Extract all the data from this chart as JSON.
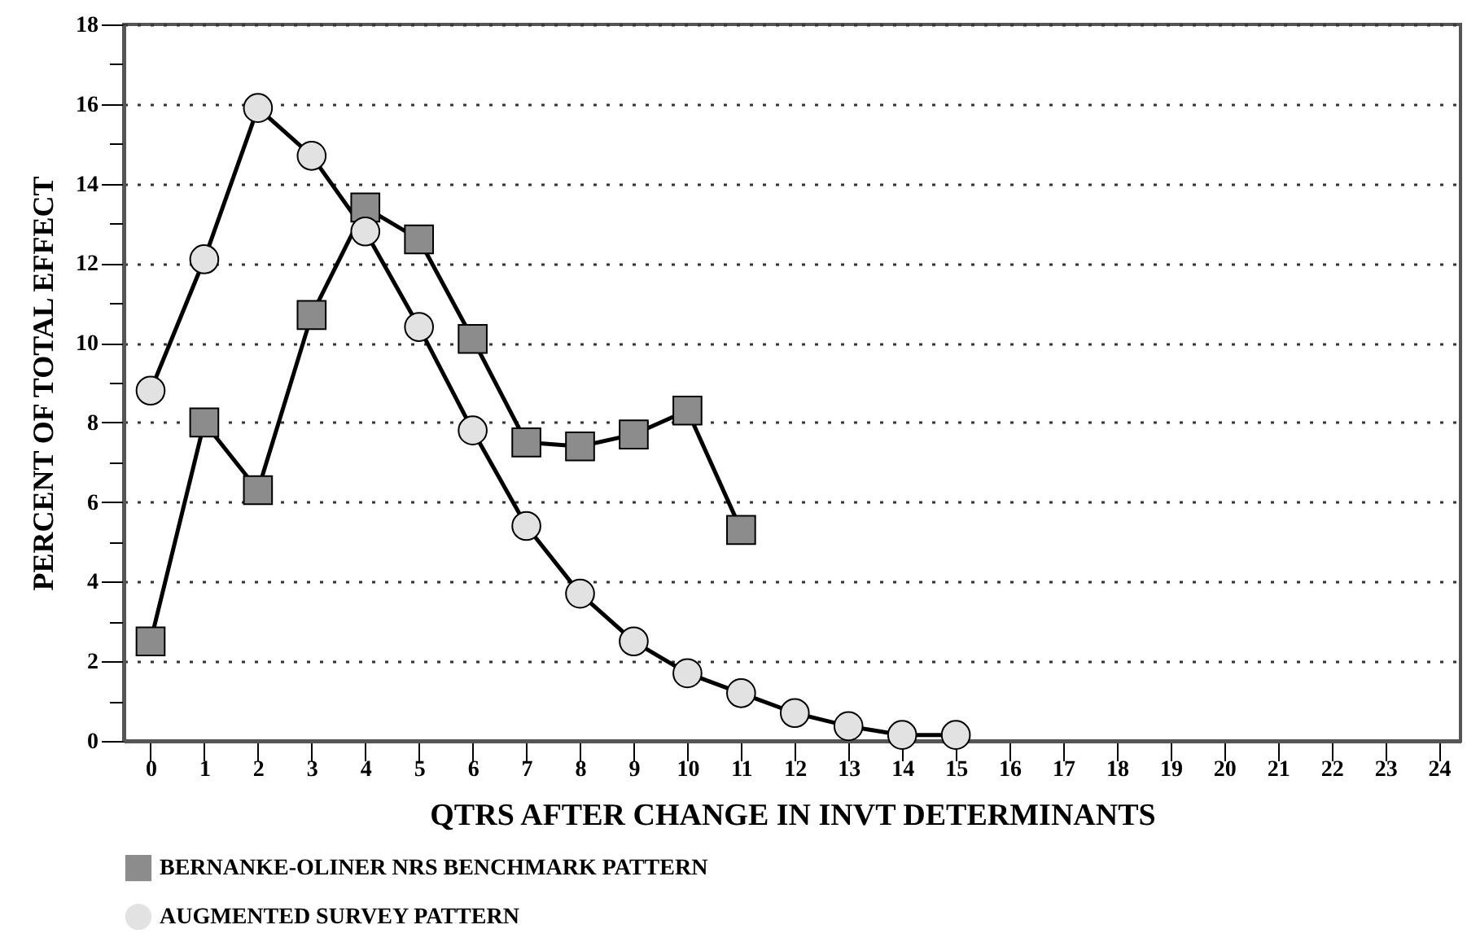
{
  "chart_data": {
    "type": "line",
    "xlabel": "QTRS AFTER CHANGE IN INVT DETERMINANTS",
    "ylabel": "PERCENT OF TOTAL EFFECT",
    "xlim": [
      -0.5,
      24.4
    ],
    "xticks": [
      0,
      1,
      2,
      3,
      4,
      5,
      6,
      7,
      8,
      9,
      10,
      11,
      12,
      13,
      14,
      15,
      16,
      17,
      18,
      19,
      20,
      21,
      22,
      23,
      24
    ],
    "ylim": [
      0,
      18
    ],
    "yticks": [
      0,
      {
        "value": 1,
        "label": null
      },
      2,
      {
        "value": 3,
        "label": null
      },
      4,
      {
        "value": 5,
        "label": null
      },
      6,
      {
        "value": 7,
        "label": null
      },
      8,
      {
        "value": 9,
        "label": null
      },
      10,
      {
        "value": 11,
        "label": null
      },
      12,
      {
        "value": 13,
        "label": null
      },
      14,
      {
        "value": 15,
        "label": null
      },
      16,
      {
        "value": 17,
        "label": null
      },
      18
    ],
    "grid": "y",
    "line_style": "solid",
    "legend": "bottom",
    "series": [
      {
        "name": "BERNANKE-OLINER NRS BENCHMARK PATTERN",
        "color": "#8c8c8c",
        "marker": "square",
        "x": [
          0,
          1,
          2,
          3,
          4,
          5,
          6,
          7,
          8,
          9,
          10,
          11
        ],
        "values": [
          2.5,
          8.0,
          6.3,
          10.7,
          13.4,
          12.6,
          10.1,
          7.5,
          7.4,
          7.7,
          8.3,
          5.3
        ]
      },
      {
        "name": "AUGMENTED SURVEY PATTERN",
        "color": "#e2e2e2",
        "marker": "circle",
        "x": [
          0,
          1,
          2,
          3,
          4,
          5,
          6,
          7,
          8,
          9,
          10,
          11,
          12,
          13,
          14,
          15
        ],
        "values": [
          8.8,
          12.1,
          15.9,
          14.7,
          12.8,
          10.4,
          7.8,
          5.4,
          3.7,
          2.5,
          1.7,
          1.2,
          0.7,
          0.37,
          0.15,
          0.15
        ]
      }
    ]
  }
}
